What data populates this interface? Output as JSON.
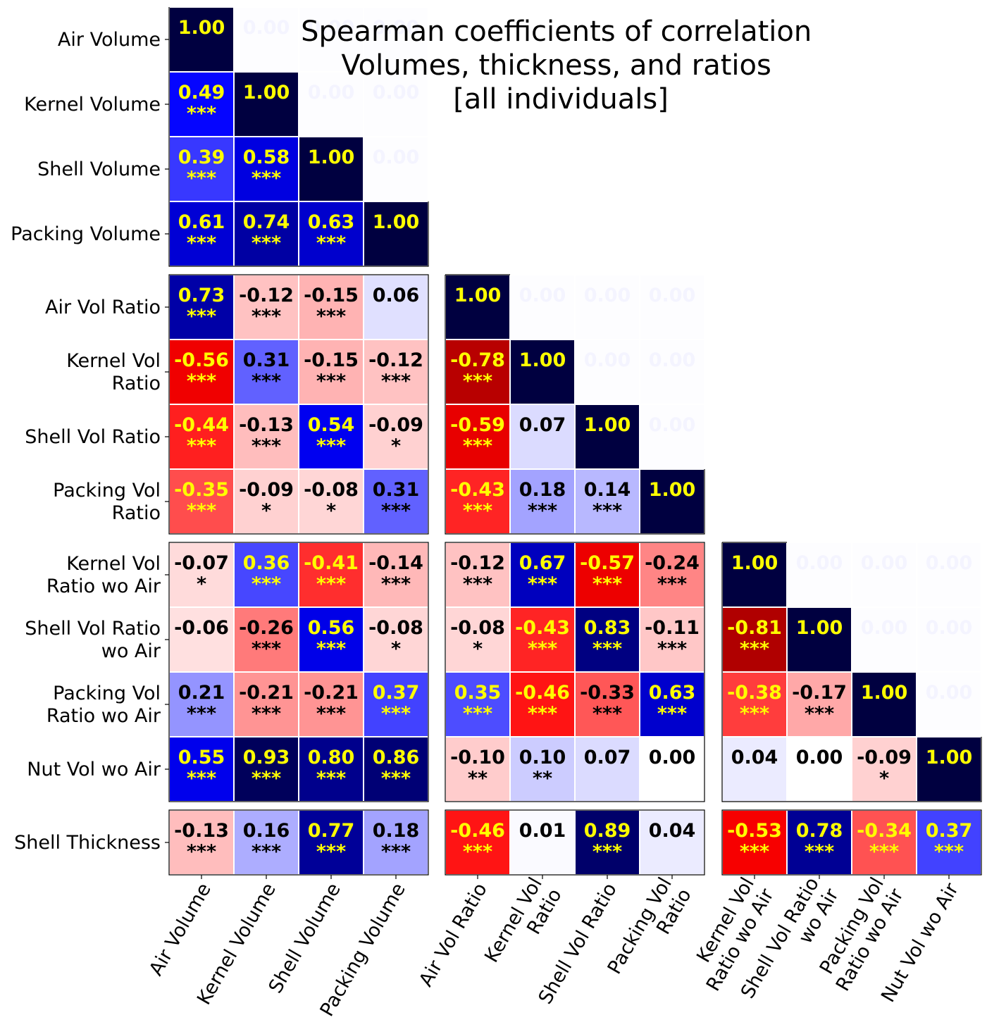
{
  "chart_data": {
    "type": "heatmap",
    "title": [
      "Spearman coefficients of correlation",
      "Volumes, thickness, and ratios",
      "[all individuals]"
    ],
    "colorscale": {
      "min": -1,
      "max": 1,
      "negative_extreme": "#800000",
      "negative_mid": "#ff0000",
      "zero": "#ffffff",
      "positive_mid": "#0000ff",
      "positive_extreme": "#000040"
    },
    "text_colors": {
      "bright": "#ffff00",
      "dark": "#000000",
      "hidden": "#f4f4ff"
    },
    "variables": [
      "Air Volume",
      "Kernel Volume",
      "Shell Volume",
      "Packing Volume",
      "Air Vol Ratio",
      "Kernel Vol Ratio",
      "Shell Vol Ratio",
      "Packing Vol Ratio",
      "Kernel Vol Ratio wo Air",
      "Shell Vol Ratio wo Air",
      "Packing Vol Ratio wo Air",
      "Nut Vol wo Air",
      "Shell Thickness"
    ],
    "row_labels": [
      [
        "Air Volume"
      ],
      [
        "Kernel Volume"
      ],
      [
        "Shell Volume"
      ],
      [
        "Packing Volume"
      ],
      [
        "Air Vol Ratio"
      ],
      [
        "Kernel Vol",
        "Ratio"
      ],
      [
        "Shell Vol Ratio"
      ],
      [
        "Packing Vol",
        "Ratio"
      ],
      [
        "Kernel Vol",
        "Ratio wo Air"
      ],
      [
        "Shell Vol Ratio",
        "wo Air"
      ],
      [
        "Packing Vol",
        "Ratio wo Air"
      ],
      [
        "Nut Vol wo Air"
      ],
      [
        "Shell Thickness"
      ]
    ],
    "col_labels": [
      [
        "Air Volume"
      ],
      [
        "Kernel Volume"
      ],
      [
        "Shell Volume"
      ],
      [
        "Packing Volume"
      ],
      [
        "Air Vol Ratio"
      ],
      [
        "Kernel Vol",
        "Ratio"
      ],
      [
        "Shell Vol Ratio"
      ],
      [
        "Packing Vol",
        "Ratio"
      ],
      [
        "Kernel Vol",
        "Ratio wo Air"
      ],
      [
        "Shell Vol Ratio",
        "wo Air"
      ],
      [
        "Packing Vol",
        "Ratio wo Air"
      ],
      [
        "Nut Vol wo Air"
      ]
    ],
    "upper_triangle_text": "0.00",
    "row_groups": [
      [
        0,
        3
      ],
      [
        4,
        7
      ],
      [
        8,
        11
      ],
      [
        12,
        12
      ]
    ],
    "col_groups": [
      [
        0,
        3
      ],
      [
        4,
        7
      ],
      [
        8,
        11
      ]
    ],
    "rows": [
      [
        {
          "v": 1.0
        }
      ],
      [
        {
          "v": 0.49,
          "s": "***"
        },
        {
          "v": 1.0
        }
      ],
      [
        {
          "v": 0.39,
          "s": "***"
        },
        {
          "v": 0.58,
          "s": "***"
        },
        {
          "v": 1.0
        }
      ],
      [
        {
          "v": 0.61,
          "s": "***"
        },
        {
          "v": 0.74,
          "s": "***"
        },
        {
          "v": 0.63,
          "s": "***"
        },
        {
          "v": 1.0
        }
      ],
      [
        {
          "v": 0.73,
          "s": "***"
        },
        {
          "v": -0.12,
          "s": "***"
        },
        {
          "v": -0.15,
          "s": "***"
        },
        {
          "v": 0.06,
          "s": ""
        },
        {
          "v": 1.0
        }
      ],
      [
        {
          "v": -0.56,
          "s": "***"
        },
        {
          "v": 0.31,
          "s": "***"
        },
        {
          "v": -0.15,
          "s": "***"
        },
        {
          "v": -0.12,
          "s": "***"
        },
        {
          "v": -0.78,
          "s": "***"
        },
        {
          "v": 1.0
        }
      ],
      [
        {
          "v": -0.44,
          "s": "***"
        },
        {
          "v": -0.13,
          "s": "***"
        },
        {
          "v": 0.54,
          "s": "***"
        },
        {
          "v": -0.09,
          "s": "*"
        },
        {
          "v": -0.59,
          "s": "***"
        },
        {
          "v": 0.07,
          "s": ""
        },
        {
          "v": 1.0
        }
      ],
      [
        {
          "v": -0.35,
          "s": "***"
        },
        {
          "v": -0.09,
          "s": "*"
        },
        {
          "v": -0.08,
          "s": "*"
        },
        {
          "v": 0.31,
          "s": "***"
        },
        {
          "v": -0.43,
          "s": "***"
        },
        {
          "v": 0.18,
          "s": "***"
        },
        {
          "v": 0.14,
          "s": "***"
        },
        {
          "v": 1.0
        }
      ],
      [
        {
          "v": -0.07,
          "s": "*"
        },
        {
          "v": 0.36,
          "s": "***"
        },
        {
          "v": -0.41,
          "s": "***"
        },
        {
          "v": -0.14,
          "s": "***"
        },
        {
          "v": -0.12,
          "s": "***"
        },
        {
          "v": 0.67,
          "s": "***"
        },
        {
          "v": -0.57,
          "s": "***"
        },
        {
          "v": -0.24,
          "s": "***"
        },
        {
          "v": 1.0
        }
      ],
      [
        {
          "v": -0.06,
          "s": ""
        },
        {
          "v": -0.26,
          "s": "***"
        },
        {
          "v": 0.56,
          "s": "***"
        },
        {
          "v": -0.08,
          "s": "*"
        },
        {
          "v": -0.08,
          "s": "*"
        },
        {
          "v": -0.43,
          "s": "***"
        },
        {
          "v": 0.83,
          "s": "***"
        },
        {
          "v": -0.11,
          "s": "***"
        },
        {
          "v": -0.81,
          "s": "***"
        },
        {
          "v": 1.0
        }
      ],
      [
        {
          "v": 0.21,
          "s": "***"
        },
        {
          "v": -0.21,
          "s": "***"
        },
        {
          "v": -0.21,
          "s": "***"
        },
        {
          "v": 0.37,
          "s": "***"
        },
        {
          "v": 0.35,
          "s": "***"
        },
        {
          "v": -0.46,
          "s": "***"
        },
        {
          "v": -0.33,
          "s": "***"
        },
        {
          "v": 0.63,
          "s": "***"
        },
        {
          "v": -0.38,
          "s": "***"
        },
        {
          "v": -0.17,
          "s": "***"
        },
        {
          "v": 1.0
        }
      ],
      [
        {
          "v": 0.55,
          "s": "***"
        },
        {
          "v": 0.93,
          "s": "***"
        },
        {
          "v": 0.8,
          "s": "***"
        },
        {
          "v": 0.86,
          "s": "***"
        },
        {
          "v": -0.1,
          "s": "**"
        },
        {
          "v": 0.1,
          "s": "**"
        },
        {
          "v": 0.07,
          "s": ""
        },
        {
          "v": 0.0,
          "s": ""
        },
        {
          "v": 0.04,
          "s": ""
        },
        {
          "v": 0.0,
          "s": ""
        },
        {
          "v": -0.09,
          "s": "*"
        },
        {
          "v": 1.0
        }
      ],
      [
        {
          "v": -0.13,
          "s": "***"
        },
        {
          "v": 0.16,
          "s": "***"
        },
        {
          "v": 0.77,
          "s": "***"
        },
        {
          "v": 0.18,
          "s": "***"
        },
        {
          "v": -0.46,
          "s": "***"
        },
        {
          "v": 0.01,
          "s": ""
        },
        {
          "v": 0.89,
          "s": "***"
        },
        {
          "v": 0.04,
          "s": ""
        },
        {
          "v": -0.53,
          "s": "***"
        },
        {
          "v": 0.78,
          "s": "***"
        },
        {
          "v": -0.34,
          "s": "***"
        },
        {
          "v": 0.37,
          "s": "***"
        }
      ]
    ]
  }
}
